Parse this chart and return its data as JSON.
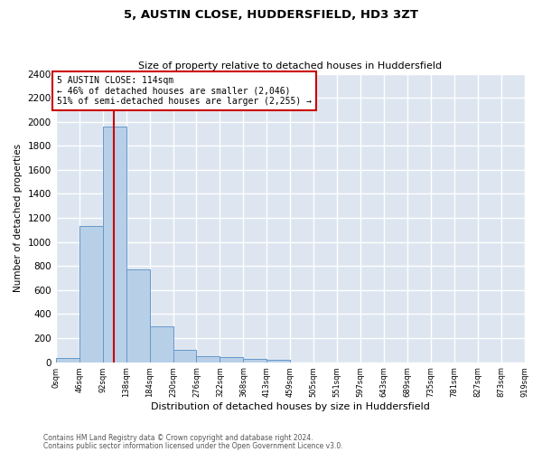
{
  "title": "5, AUSTIN CLOSE, HUDDERSFIELD, HD3 3ZT",
  "subtitle": "Size of property relative to detached houses in Huddersfield",
  "xlabel": "Distribution of detached houses by size in Huddersfield",
  "ylabel": "Number of detached properties",
  "bar_color": "#b8cfe8",
  "bar_edge_color": "#6699cc",
  "background_color": "#dde6f0",
  "grid_color": "#ffffff",
  "bins": [
    0,
    46,
    92,
    138,
    184,
    230,
    276,
    322,
    368,
    413,
    459,
    505,
    551,
    597,
    643,
    689,
    735,
    781,
    827,
    873,
    919
  ],
  "values": [
    35,
    1135,
    1960,
    770,
    300,
    100,
    48,
    40,
    30,
    18,
    0,
    0,
    0,
    0,
    0,
    0,
    0,
    0,
    0,
    0
  ],
  "property_size": 114,
  "property_label": "5 AUSTIN CLOSE: 114sqm",
  "annotation_line1": "← 46% of detached houses are smaller (2,046)",
  "annotation_line2": "51% of semi-detached houses are larger (2,255) →",
  "vline_color": "#cc0000",
  "box_color": "#cc0000",
  "ylim": [
    0,
    2400
  ],
  "yticks": [
    0,
    200,
    400,
    600,
    800,
    1000,
    1200,
    1400,
    1600,
    1800,
    2000,
    2200,
    2400
  ],
  "tick_labels": [
    "0sqm",
    "46sqm",
    "92sqm",
    "138sqm",
    "184sqm",
    "230sqm",
    "276sqm",
    "322sqm",
    "368sqm",
    "413sqm",
    "459sqm",
    "505sqm",
    "551sqm",
    "597sqm",
    "643sqm",
    "689sqm",
    "735sqm",
    "781sqm",
    "827sqm",
    "873sqm",
    "919sqm"
  ],
  "footnote1": "Contains HM Land Registry data © Crown copyright and database right 2024.",
  "footnote2": "Contains public sector information licensed under the Open Government Licence v3.0.",
  "fig_width": 6.0,
  "fig_height": 5.0,
  "title_fontsize": 9.5,
  "subtitle_fontsize": 8.0,
  "xlabel_fontsize": 8.0,
  "ylabel_fontsize": 7.5,
  "xtick_fontsize": 6.0,
  "ytick_fontsize": 7.5,
  "annotation_fontsize": 7.0,
  "footnote_fontsize": 5.5
}
